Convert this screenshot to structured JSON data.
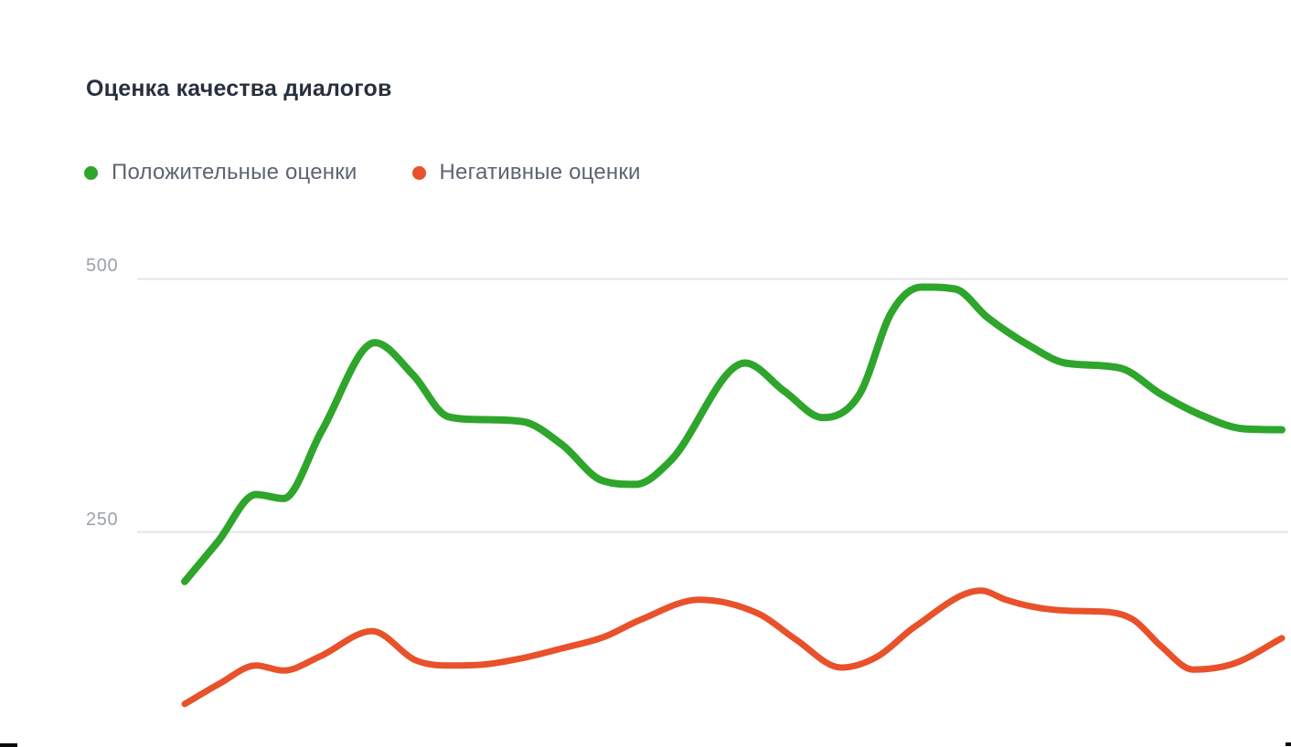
{
  "chart": {
    "title": "Оценка качества диалогов",
    "legend": [
      {
        "label": "Положительные оценки",
        "color": "#2EA52B"
      },
      {
        "label": "Негативные оценки",
        "color": "#E8512A"
      }
    ],
    "y_axis": {
      "tick_labels": [
        "500",
        "250"
      ]
    }
  },
  "chart_data": {
    "type": "line",
    "title": "Оценка качества диалогов",
    "xlabel": "",
    "ylabel": "",
    "x_axis": "hidden (no x tick labels visible)",
    "ylim": [
      0,
      500
    ],
    "y_gridlines": [
      500,
      250
    ],
    "grid": "horizontal-only",
    "legend_position": "top-left",
    "line_style": "smooth monotone curves, no markers, no area fill",
    "series": [
      {
        "name": "Положительные оценки",
        "color": "#2EA52B",
        "stroke_width": 8,
        "points": [
          [
            202,
            201
          ],
          [
            238,
            240
          ],
          [
            280,
            287
          ],
          [
            310,
            283
          ],
          [
            352,
            350
          ],
          [
            410,
            437
          ],
          [
            452,
            405
          ],
          [
            490,
            364
          ],
          [
            530,
            361
          ],
          [
            572,
            359
          ],
          [
            615,
            336
          ],
          [
            658,
            301
          ],
          [
            695,
            297
          ],
          [
            733,
            320
          ],
          [
            815,
            417
          ],
          [
            858,
            389
          ],
          [
            900,
            363
          ],
          [
            940,
            386
          ],
          [
            975,
            467
          ],
          [
            1008,
            492
          ],
          [
            1045,
            490
          ],
          [
            1080,
            462
          ],
          [
            1128,
            433
          ],
          [
            1165,
            417
          ],
          [
            1225,
            412
          ],
          [
            1270,
            386
          ],
          [
            1310,
            367
          ],
          [
            1360,
            352
          ],
          [
            1402,
            351
          ]
        ]
      },
      {
        "name": "Негативные оценки",
        "color": "#E8512A",
        "stroke_width": 7,
        "points": [
          [
            202,
            80
          ],
          [
            240,
            100
          ],
          [
            280,
            118
          ],
          [
            310,
            113
          ],
          [
            350,
            127
          ],
          [
            407,
            152
          ],
          [
            455,
            123
          ],
          [
            490,
            118
          ],
          [
            530,
            119
          ],
          [
            570,
            125
          ],
          [
            615,
            135
          ],
          [
            660,
            146
          ],
          [
            700,
            163
          ],
          [
            765,
            183
          ],
          [
            830,
            169
          ],
          [
            870,
            144
          ],
          [
            920,
            116
          ],
          [
            960,
            127
          ],
          [
            1000,
            156
          ],
          [
            1073,
            192
          ],
          [
            1100,
            183
          ],
          [
            1130,
            176
          ],
          [
            1170,
            172
          ],
          [
            1210,
            171
          ],
          [
            1240,
            163
          ],
          [
            1270,
            137
          ],
          [
            1305,
            114
          ],
          [
            1350,
            120
          ],
          [
            1402,
            145
          ]
        ]
      }
    ]
  }
}
